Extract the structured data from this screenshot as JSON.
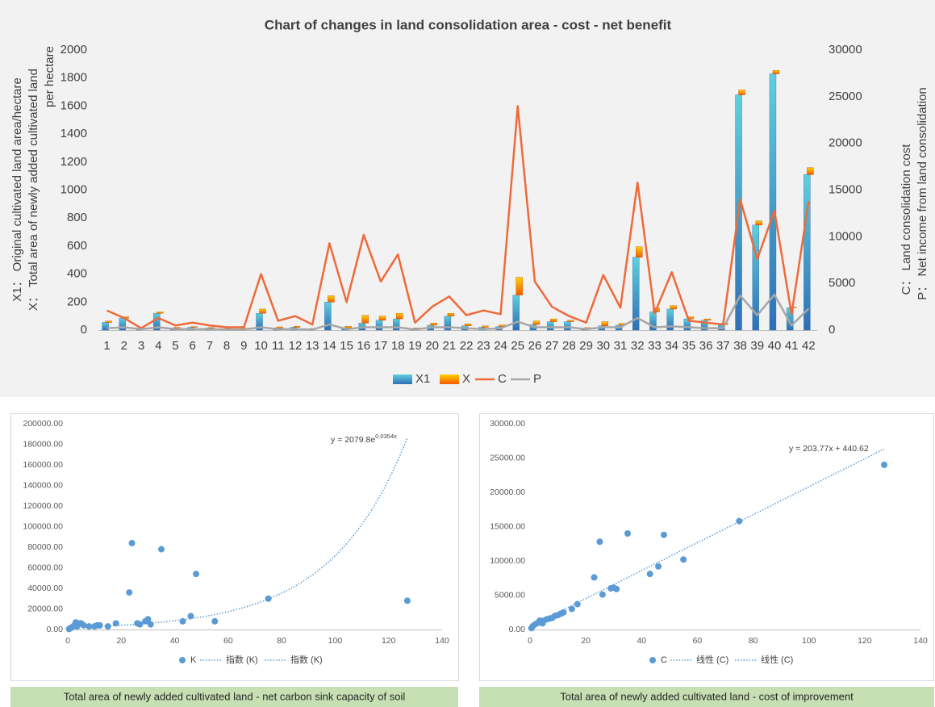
{
  "chart_data": [
    {
      "type": "bar",
      "title": "Chart of changes in land consolidation area - cost - net benefit",
      "ylabel": [
        "X1： Original cultivated land area/hectare",
        "X： Total area of newly added cultivated land",
        "per hectare"
      ],
      "y2label": [
        "C： Land consolidation cost",
        "P： Net income from land consolidation"
      ],
      "categories": [
        "1",
        "2",
        "3",
        "4",
        "5",
        "6",
        "7",
        "8",
        "9",
        "10",
        "11",
        "12",
        "13",
        "14",
        "15",
        "16",
        "17",
        "18",
        "19",
        "20",
        "21",
        "22",
        "23",
        "24",
        "25",
        "26",
        "27",
        "28",
        "29",
        "30",
        "31",
        "32",
        "33",
        "34",
        "35",
        "36",
        "37",
        "38",
        "39",
        "40",
        "41",
        "42"
      ],
      "series": [
        {
          "name": "X1",
          "colors": [
            "#5ed0dc",
            "#2f6fb5"
          ],
          "values": [
            55,
            85,
            10,
            120,
            15,
            20,
            15,
            10,
            10,
            120,
            15,
            20,
            10,
            200,
            15,
            50,
            70,
            80,
            10,
            35,
            100,
            30,
            20,
            25,
            250,
            40,
            60,
            60,
            10,
            30,
            35,
            520,
            130,
            150,
            80,
            70,
            40,
            1680,
            750,
            1830,
            160,
            1110
          ]
        },
        {
          "name": "X",
          "colors": [
            "#ffd000",
            "#f05a00"
          ],
          "values": [
            10,
            10,
            2,
            10,
            5,
            5,
            3,
            2,
            2,
            30,
            8,
            8,
            2,
            45,
            12,
            55,
            30,
            40,
            5,
            15,
            20,
            15,
            10,
            12,
            127,
            25,
            20,
            10,
            8,
            30,
            12,
            75,
            30,
            25,
            15,
            10,
            10,
            35,
            30,
            25,
            5,
            50
          ]
        },
        {
          "name": "C",
          "color": "#ed6a3a",
          "axis": "y2",
          "values": [
            2100,
            1300,
            200,
            1300,
            500,
            800,
            500,
            300,
            300,
            6000,
            1000,
            1500,
            600,
            9300,
            3000,
            10200,
            5200,
            8100,
            800,
            2500,
            3600,
            1600,
            2100,
            1700,
            24000,
            5200,
            2500,
            1500,
            800,
            5900,
            2400,
            15800,
            1800,
            6200,
            1000,
            800,
            600,
            14000,
            7600,
            12800,
            1700,
            13800
          ]
        },
        {
          "name": "P",
          "color": "#a6a6a6",
          "axis": "y2",
          "values": [
            200,
            300,
            100,
            300,
            100,
            100,
            100,
            50,
            50,
            300,
            100,
            100,
            50,
            600,
            100,
            300,
            300,
            300,
            50,
            300,
            300,
            200,
            100,
            200,
            900,
            300,
            300,
            300,
            100,
            300,
            300,
            1300,
            300,
            400,
            300,
            200,
            200,
            3700,
            1600,
            3800,
            500,
            2300
          ]
        }
      ],
      "ylim": [
        0,
        2000
      ],
      "yticks": [
        0,
        200,
        400,
        600,
        800,
        1000,
        1200,
        1400,
        1600,
        1800,
        2000
      ],
      "y2lim": [
        0,
        30000
      ],
      "y2ticks": [
        0,
        5000,
        10000,
        15000,
        20000,
        25000,
        30000
      ],
      "grid": false,
      "legend": "bottom"
    },
    {
      "type": "scatter",
      "title": "Total area of newly added cultivated land - net carbon sink capacity of soil",
      "series": [
        {
          "name": "K",
          "color": "#5b9bd5",
          "x": [
            127,
            75,
            48,
            35,
            24,
            23,
            46,
            43,
            55,
            30,
            29,
            31,
            27,
            26,
            18,
            15,
            12,
            10,
            11,
            8,
            6,
            5,
            4,
            3,
            2.5,
            2,
            1.5,
            1,
            0.5,
            3.5,
            4.5
          ],
          "values": [
            28000,
            30000,
            54000,
            78000,
            84000,
            36000,
            13000,
            8000,
            8000,
            10000,
            8000,
            5000,
            5000,
            6000,
            6000,
            3000,
            4000,
            3000,
            4000,
            3000,
            4000,
            6000,
            5000,
            7000,
            4000,
            3000,
            2000,
            1500,
            500,
            3000,
            6000
          ]
        }
      ],
      "trendline": {
        "kind": "exponential",
        "a": 2079.8,
        "b": 0.0354,
        "label_base": "y = 2079.8e",
        "label_exp": "0.0354x",
        "legend": [
          "指数 (K)",
          "指数 (K)"
        ]
      },
      "xlim": [
        0,
        140
      ],
      "xticks": [
        0,
        20,
        40,
        60,
        80,
        100,
        120,
        140
      ],
      "ylim": [
        0,
        200000
      ],
      "yticks": [
        {
          "value": 0,
          "label": "0.00"
        },
        {
          "value": 20000,
          "label": "20000.00"
        },
        {
          "value": 40000,
          "label": "40000.00"
        },
        {
          "value": 60000,
          "label": "60000.00"
        },
        {
          "value": 80000,
          "label": "80000.00"
        },
        {
          "value": 100000,
          "label": "100000.00"
        },
        {
          "value": 120000,
          "label": "120000.00"
        },
        {
          "value": 140000,
          "label": "140000.00"
        },
        {
          "value": 160000,
          "label": "160000.00"
        },
        {
          "value": 180000,
          "label": "180000.00"
        },
        {
          "value": 200000,
          "label": "200000.00"
        }
      ],
      "grid": false,
      "legend": "bottom"
    },
    {
      "type": "scatter",
      "title": "Total area of newly added cultivated land - cost of improvement",
      "series": [
        {
          "name": "C",
          "color": "#5b9bd5",
          "x": [
            127,
            75,
            55,
            48,
            46,
            43,
            35,
            31,
            30,
            29,
            25,
            26,
            23,
            17,
            15,
            12,
            10,
            9,
            7,
            6,
            5,
            4,
            3,
            2,
            1,
            0.5,
            3.5,
            4.5,
            8,
            11
          ],
          "values": [
            24000,
            15800,
            10200,
            13800,
            9200,
            8100,
            14000,
            5900,
            6100,
            6000,
            12800,
            5100,
            7600,
            3700,
            3000,
            2500,
            2100,
            2000,
            1600,
            1500,
            1300,
            1200,
            1000,
            800,
            500,
            200,
            1300,
            900,
            1700,
            2300
          ]
        }
      ],
      "trendline": {
        "kind": "linear",
        "a": 203.77,
        "b": 440.62,
        "label_base": "y = 203.77x + 440.62",
        "label_exp": "",
        "legend": [
          "线性 (C)",
          "线性 (C)"
        ]
      },
      "xlim": [
        0,
        140
      ],
      "xticks": [
        0,
        20,
        40,
        60,
        80,
        100,
        120,
        140
      ],
      "ylim": [
        0,
        30000
      ],
      "yticks": [
        {
          "value": 0,
          "label": "0.00"
        },
        {
          "value": 5000,
          "label": "5000.00"
        },
        {
          "value": 10000,
          "label": "10000.00"
        },
        {
          "value": 15000,
          "label": "15000.00"
        },
        {
          "value": 20000,
          "label": "20000.00"
        },
        {
          "value": 25000,
          "label": "25000.00"
        },
        {
          "value": 30000,
          "label": "30000.00"
        }
      ],
      "grid": false,
      "legend": "bottom"
    }
  ]
}
